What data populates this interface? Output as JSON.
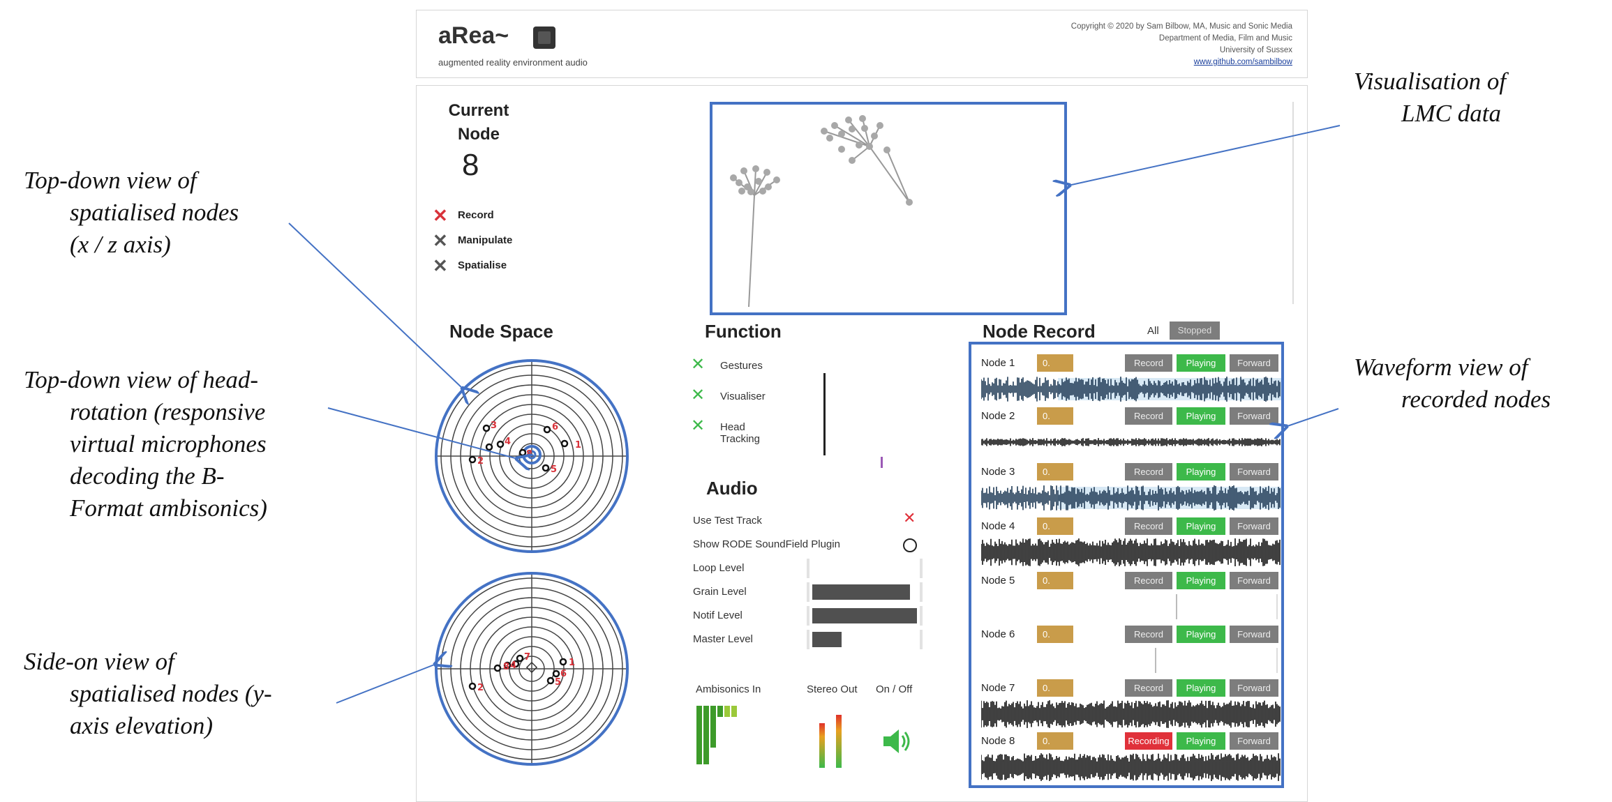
{
  "header": {
    "app_title": "aRea~",
    "app_subtitle": "augmented reality environment audio",
    "copyright_lines": [
      "Copyright © 2020 by Sam Bilbow, MA, Music and Sonic Media",
      "Department of Media, Film and Music",
      "University of Sussex"
    ],
    "github_link": "www.github.com/sambilbow"
  },
  "current_node": {
    "title_line1": "Current",
    "title_line2": "Node",
    "value": "8",
    "modes": [
      {
        "label": "Record",
        "color": "#d8323a"
      },
      {
        "label": "Manipulate",
        "color": "#555555"
      },
      {
        "label": "Spatialise",
        "color": "#555555"
      }
    ]
  },
  "node_space": {
    "title": "Node Space",
    "topdown_labels": [
      "3",
      "4",
      "6",
      "1",
      "2",
      "8",
      "5"
    ],
    "sideon_labels": [
      "7",
      "4",
      "8",
      "1",
      "6",
      "5",
      "2"
    ]
  },
  "function": {
    "title": "Function",
    "items": [
      "Gestures",
      "Visualiser",
      "Head Tracking"
    ],
    "check_color": "#3db94a"
  },
  "audio": {
    "title": "Audio",
    "toggles": [
      {
        "label": "Use Test Track",
        "state": "x"
      },
      {
        "label": "Show RODE SoundField Plugin",
        "state": "circle"
      }
    ],
    "levels": [
      {
        "label": "Loop Level",
        "value": 0
      },
      {
        "label": "Grain Level",
        "value": 0.93
      },
      {
        "label": "Notif Level",
        "value": 1.0
      },
      {
        "label": "Master Level",
        "value": 0.28
      }
    ],
    "meters": {
      "ambisonics_in": "Ambisonics In",
      "stereo_out": "Stereo Out",
      "on_off": "On / Off"
    }
  },
  "node_record": {
    "title": "Node Record",
    "filter_all": "All",
    "filter_stopped": "Stopped",
    "value_placeholder": "0.",
    "record_label": "Record",
    "recording_label": "Recording",
    "playing_label": "Playing",
    "forward_label": "Forward",
    "nodes": [
      {
        "name": "Node 1",
        "recording": false,
        "wave": "dense-light"
      },
      {
        "name": "Node 2",
        "recording": false,
        "wave": "thin"
      },
      {
        "name": "Node 3",
        "recording": false,
        "wave": "dense-light"
      },
      {
        "name": "Node 4",
        "recording": false,
        "wave": "full"
      },
      {
        "name": "Node 5",
        "recording": false,
        "wave": "none"
      },
      {
        "name": "Node 6",
        "recording": false,
        "wave": "none"
      },
      {
        "name": "Node 7",
        "recording": false,
        "wave": "full"
      },
      {
        "name": "Node 8",
        "recording": true,
        "wave": "full"
      }
    ]
  },
  "callouts": {
    "lmc": [
      "Visualisation of",
      "LMC data"
    ],
    "topdown_nodes": [
      "Top-down view of",
      "spatialised nodes",
      "(x / z axis)"
    ],
    "head_rotation": [
      "Top-down view of head-",
      "rotation (responsive",
      "virtual microphones",
      "decoding the B-",
      "Format ambisonics)"
    ],
    "sideon": [
      "Side-on view of",
      "spatialised nodes (y-",
      "axis elevation)"
    ],
    "waveform": [
      "Waveform view of",
      "recorded nodes"
    ]
  },
  "colors": {
    "frame_blue": "#4472c4",
    "playing_green": "#3db94a",
    "recording_red": "#e0313a",
    "number_gold": "#c99c4a",
    "button_gray": "#7d7d7d",
    "node_label_red": "#d8323a"
  }
}
